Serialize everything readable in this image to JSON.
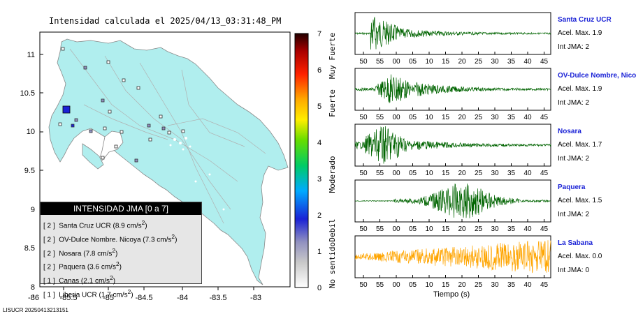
{
  "map": {
    "title": "Intensidad calculada el 2025/04/13_03:31:48_PM",
    "lat_ticks": [
      "11",
      "10.5",
      "10",
      "9.5",
      "9",
      "8.5",
      "8"
    ],
    "lon_ticks": [
      "-86",
      "-85.5",
      "-85",
      "-84.5",
      "-84",
      "-83.5",
      "-83"
    ],
    "land_color": "#b0eeee",
    "epicenter_color": "#1a22d6"
  },
  "colorbar": {
    "ticks": [
      "0",
      "1",
      "2",
      "3",
      "4",
      "5",
      "6",
      "7"
    ],
    "labels": [
      "No sentido",
      "Debil",
      "Moderado",
      "Fuerte",
      "Muy Fuerte"
    ]
  },
  "legend": {
    "title": "INTENSIDAD JMA [0 a 7]",
    "items": [
      {
        "level": "[ 2 ]",
        "text": "Santa Cruz UCR (8.9 cm/s",
        "sup": "2",
        "end": ")"
      },
      {
        "level": "[ 2 ]",
        "text": "OV-Dulce Nombre. Nicoya (7.3 cm/s",
        "sup": "2",
        "end": ")"
      },
      {
        "level": "[ 2 ]",
        "text": "Nosara (7.8 cm/s",
        "sup": "2",
        "end": ")"
      },
      {
        "level": "[ 2 ]",
        "text": "Paquera (3.6 cm/s",
        "sup": "2",
        "end": ")"
      },
      {
        "level": "[ 1 ]",
        "text": "Canas (2.1 cm/s",
        "sup": "2",
        "end": ")"
      },
      {
        "level": "[ 1 ]",
        "text": "Liberia UCR (1.7 cm/s",
        "sup": "2",
        "end": ")"
      }
    ]
  },
  "footer_id": "LISUCR 20250413213151",
  "traces": {
    "time_ticks": [
      "50",
      "55",
      "00",
      "05",
      "10",
      "15",
      "20",
      "25",
      "30",
      "35",
      "40",
      "45"
    ],
    "x_axis_title": "Tiempo (s)",
    "items": [
      {
        "name": "Santa Cruz UCR",
        "acel": "Acel. Max. 1.9",
        "int": "Int JMA: 2",
        "color": "#006400"
      },
      {
        "name": "OV-Dulce Nombre, Nicoya",
        "acel": "Acel. Max. 1.9",
        "int": "Int JMA: 2",
        "color": "#006400"
      },
      {
        "name": "Nosara",
        "acel": "Acel. Max. 1.7",
        "int": "Int JMA: 2",
        "color": "#006400"
      },
      {
        "name": "Paquera",
        "acel": "Acel. Max. 1.5",
        "int": "Int JMA: 2",
        "color": "#006400"
      },
      {
        "name": "La Sabana",
        "acel": "Acel. Max. 0.0",
        "int": "Int JMA: 0",
        "color": "#ffa500"
      }
    ]
  }
}
